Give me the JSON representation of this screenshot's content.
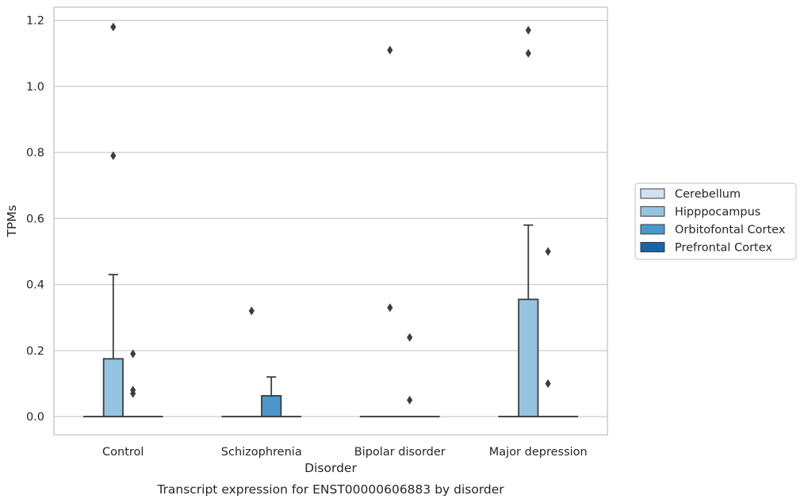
{
  "chart_data": {
    "type": "box",
    "title": "",
    "caption": "Transcript expression for ENST00000606883 by disorder",
    "xlabel": "Disorder",
    "ylabel": "TPMs",
    "ylim": [
      -0.055,
      1.24
    ],
    "yticks": [
      0.0,
      0.2,
      0.4,
      0.6,
      0.8,
      1.0,
      1.2
    ],
    "ytick_labels": [
      "0.0",
      "0.2",
      "0.4",
      "0.6",
      "0.8",
      "1.0",
      "1.2"
    ],
    "grid": "horizontal",
    "legend_position": "right",
    "categories": [
      "Control",
      "Schizophrenia",
      "Bipolar disorder",
      "Major depression"
    ],
    "series": [
      {
        "name": "Cerebellum",
        "color": "#d0e1f2",
        "boxes": [
          {
            "q1": 0,
            "median": 0,
            "q3": 0,
            "whisker_low": 0,
            "whisker_high": 0,
            "outliers": []
          },
          {
            "q1": 0,
            "median": 0,
            "q3": 0,
            "whisker_low": 0,
            "whisker_high": 0,
            "outliers": []
          },
          {
            "q1": 0,
            "median": 0,
            "q3": 0,
            "whisker_low": 0,
            "whisker_high": 0,
            "outliers": []
          },
          {
            "q1": 0,
            "median": 0,
            "q3": 0,
            "whisker_low": 0,
            "whisker_high": 0,
            "outliers": []
          }
        ]
      },
      {
        "name": "Hipppocampus",
        "color": "#94c4df",
        "boxes": [
          {
            "q1": 0,
            "median": 0,
            "q3": 0.175,
            "whisker_low": 0,
            "whisker_high": 0.43,
            "outliers": [
              0.79,
              1.18
            ]
          },
          {
            "q1": 0,
            "median": 0,
            "q3": 0,
            "whisker_low": 0,
            "whisker_high": 0,
            "outliers": [
              0.32
            ]
          },
          {
            "q1": 0,
            "median": 0,
            "q3": 0,
            "whisker_low": 0,
            "whisker_high": 0,
            "outliers": [
              0.33,
              1.11
            ]
          },
          {
            "q1": 0,
            "median": 0,
            "q3": 0.355,
            "whisker_low": 0,
            "whisker_high": 0.58,
            "outliers": [
              1.1,
              1.17
            ]
          }
        ]
      },
      {
        "name": "Orbitofontal Cortex",
        "color": "#4a98c9",
        "boxes": [
          {
            "q1": 0,
            "median": 0,
            "q3": 0,
            "whisker_low": 0,
            "whisker_high": 0,
            "outliers": [
              0.07,
              0.08,
              0.19
            ]
          },
          {
            "q1": 0,
            "median": 0,
            "q3": 0.063,
            "whisker_low": 0,
            "whisker_high": 0.12,
            "outliers": []
          },
          {
            "q1": 0,
            "median": 0,
            "q3": 0,
            "whisker_low": 0,
            "whisker_high": 0,
            "outliers": [
              0.05,
              0.24
            ]
          },
          {
            "q1": 0,
            "median": 0,
            "q3": 0,
            "whisker_low": 0,
            "whisker_high": 0,
            "outliers": [
              0.1,
              0.5
            ]
          }
        ]
      },
      {
        "name": "Prefrontal Cortex",
        "color": "#1764ab",
        "boxes": [
          {
            "q1": 0,
            "median": 0,
            "q3": 0,
            "whisker_low": 0,
            "whisker_high": 0,
            "outliers": []
          },
          {
            "q1": 0,
            "median": 0,
            "q3": 0,
            "whisker_low": 0,
            "whisker_high": 0,
            "outliers": []
          },
          {
            "q1": 0,
            "median": 0,
            "q3": 0,
            "whisker_low": 0,
            "whisker_high": 0,
            "outliers": []
          },
          {
            "q1": 0,
            "median": 0,
            "q3": 0,
            "whisker_low": 0,
            "whisker_high": 0,
            "outliers": []
          }
        ]
      }
    ]
  }
}
